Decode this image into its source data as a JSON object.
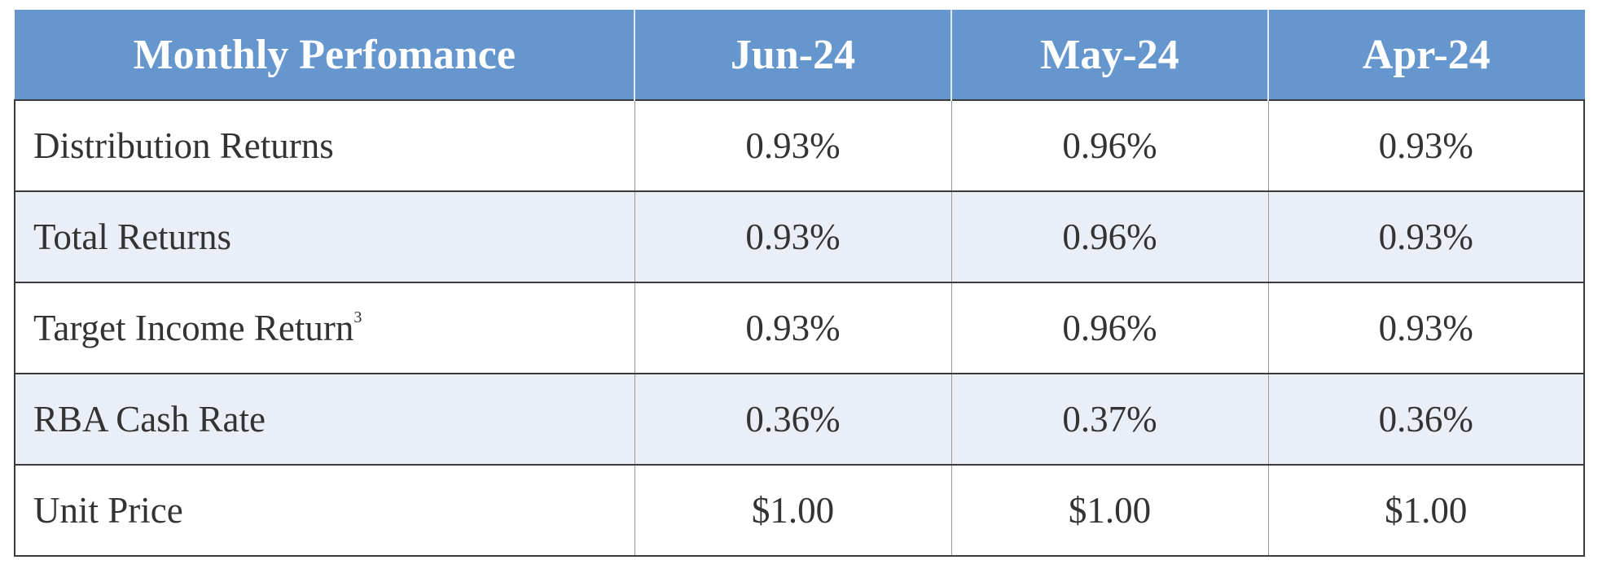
{
  "table": {
    "header": [
      "Monthly Perfomance",
      "Jun-24",
      "May-24",
      "Apr-24"
    ],
    "rows": [
      {
        "label": "Distribution Returns",
        "values": [
          "0.93%",
          "0.96%",
          "0.93%"
        ]
      },
      {
        "label": "Total Returns",
        "values": [
          "0.93%",
          "0.96%",
          "0.93%"
        ]
      },
      {
        "label": "Target Income Return",
        "note": "3",
        "values": [
          "0.93%",
          "0.96%",
          "0.93%"
        ]
      },
      {
        "label": "RBA Cash Rate",
        "values": [
          "0.36%",
          "0.37%",
          "0.36%"
        ]
      },
      {
        "label": "Unit Price",
        "values": [
          "$1.00",
          "$1.00",
          "$1.00"
        ]
      }
    ]
  }
}
